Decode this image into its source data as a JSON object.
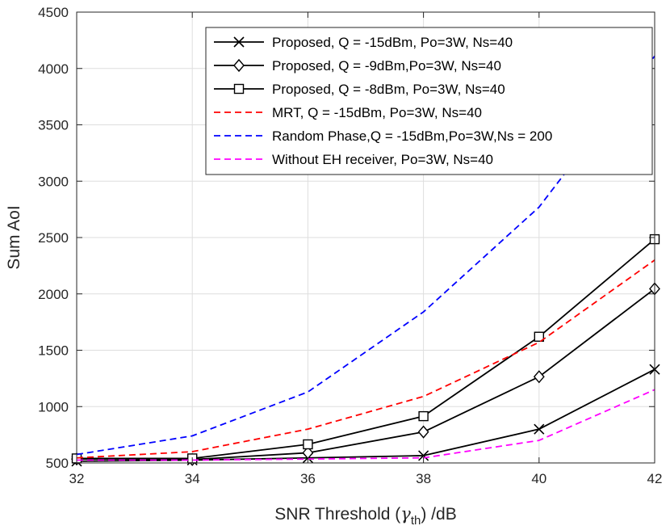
{
  "chart_data": {
    "type": "line",
    "title": "",
    "xlabel_prefix": "SNR Threshold (",
    "xlabel_symbol": "γ",
    "xlabel_subscript": "th",
    "xlabel_suffix": ")  /dB",
    "ylabel": "Sum AoI",
    "xlim": [
      32,
      42
    ],
    "ylim": [
      500,
      4500
    ],
    "xticks": [
      32,
      34,
      36,
      38,
      40,
      42
    ],
    "yticks": [
      500,
      1000,
      1500,
      2000,
      2500,
      3000,
      3500,
      4000,
      4500
    ],
    "grid": true,
    "legend_position": "top-right",
    "x": [
      32,
      34,
      36,
      38,
      40,
      42
    ],
    "series": [
      {
        "name": "Proposed, Q = -15dBm, Po=3W, Ns=40",
        "values": [
          515,
          525,
          545,
          565,
          800,
          1330
        ],
        "color": "#000000",
        "dash": "solid",
        "marker": "x"
      },
      {
        "name": "Proposed, Q = -9dBm,Po=3W, Ns=40",
        "values": [
          535,
          530,
          590,
          775,
          1265,
          2045
        ],
        "color": "#000000",
        "dash": "solid",
        "marker": "diamond"
      },
      {
        "name": "Proposed, Q = -8dBm, Po=3W, Ns=40",
        "values": [
          540,
          540,
          665,
          915,
          1620,
          2485
        ],
        "color": "#000000",
        "dash": "solid",
        "marker": "square"
      },
      {
        "name": "MRT, Q = -15dBm, Po=3W, Ns=40",
        "values": [
          545,
          600,
          800,
          1090,
          1570,
          2300
        ],
        "color": "#ff0000",
        "dash": "dashed",
        "marker": "none"
      },
      {
        "name": "Random Phase,Q = -15dBm,Po=3W,Ns = 200",
        "values": [
          575,
          740,
          1130,
          1840,
          2770,
          4110
        ],
        "color": "#0000ff",
        "dash": "dashed",
        "marker": "none"
      },
      {
        "name": "Without EH receiver, Po=3W, Ns=40",
        "values": [
          525,
          525,
          535,
          545,
          700,
          1150
        ],
        "color": "#ff00ff",
        "dash": "dashed",
        "marker": "none"
      }
    ]
  }
}
